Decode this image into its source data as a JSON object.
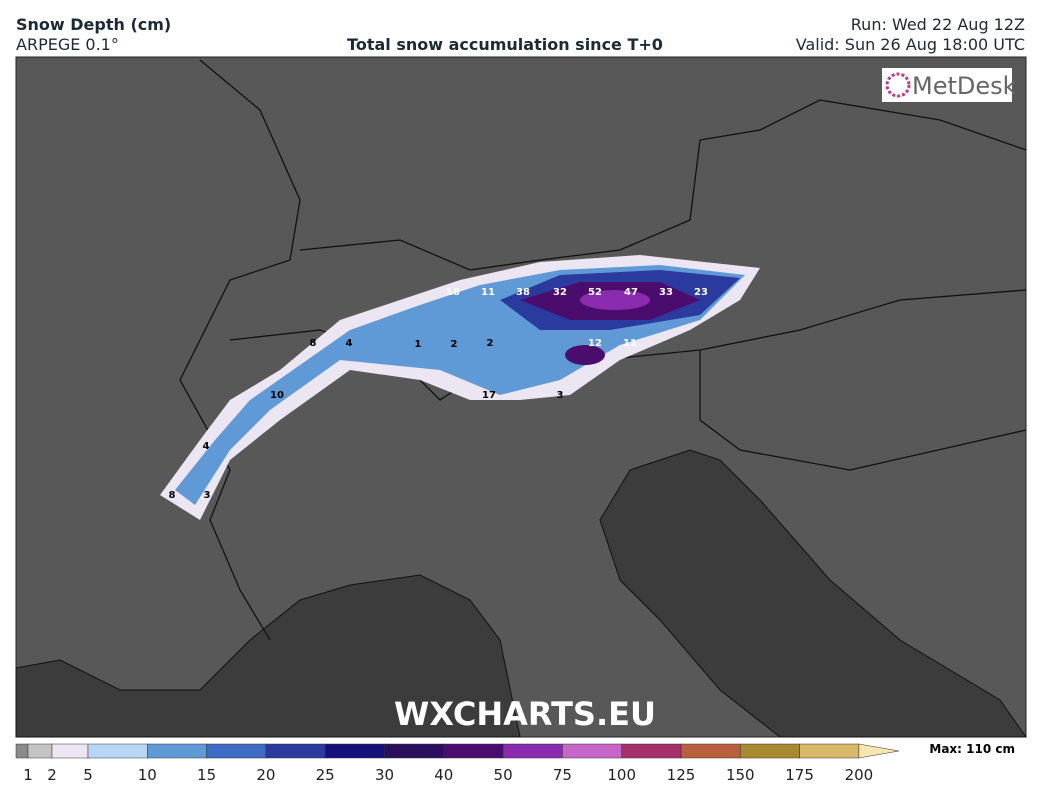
{
  "header": {
    "title": "Snow Depth (cm)",
    "model": "ARPEGE 0.1°",
    "subtitle": "Total snow accumulation since T+0",
    "run": "Run: Wed 22 Aug 12Z",
    "valid": "Valid: Sun 26 Aug 18:00 UTC"
  },
  "logo": "MetDesk",
  "watermark": "WXCHARTS.EU",
  "map_labels": [
    18,
    11,
    38,
    32,
    52,
    47,
    33,
    23,
    8,
    4,
    1,
    2,
    2,
    12,
    11,
    10,
    17,
    3,
    4,
    8,
    3
  ],
  "legend": {
    "ticks": [
      1,
      2,
      5,
      10,
      15,
      20,
      25,
      30,
      40,
      50,
      75,
      100,
      125,
      150,
      175,
      200
    ],
    "colors": [
      "#8a8a8a",
      "#c4c4c4",
      "#ece6f2",
      "#b8d6f6",
      "#5f9ad6",
      "#3e6cc4",
      "#2b3a9e",
      "#17107a",
      "#2a0f5e",
      "#4a0d6e",
      "#8a2bb0",
      "#c566c8",
      "#a6306a",
      "#b8603e",
      "#a88a30",
      "#d8b86a",
      "#f8e6b0"
    ],
    "max_label": "Max: 110 cm"
  }
}
